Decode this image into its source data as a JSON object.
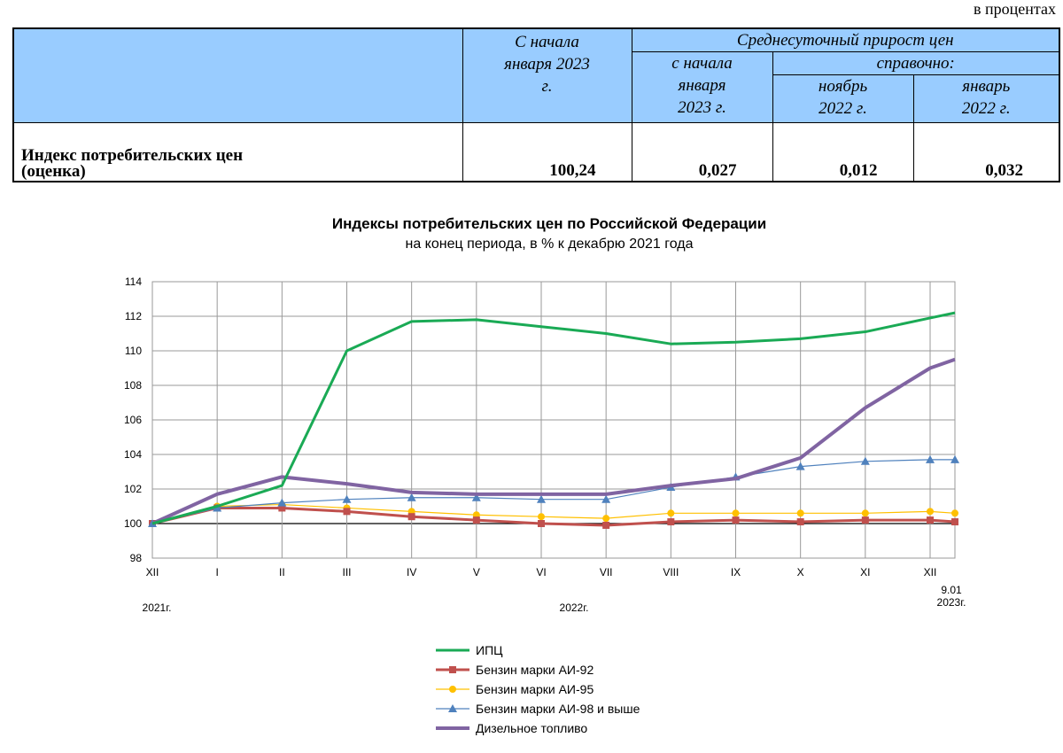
{
  "units_label": "в процентах",
  "table": {
    "col_since_jan": "С начала января 2023 г.",
    "col_daily_group": "Среднесуточный прирост цен",
    "col_daily_since_jan": "с начала января 2023 г.",
    "col_reference_group": "справочно:",
    "col_ref_nov": "ноябрь 2022 г.",
    "col_ref_jan": "январь 2022 г.",
    "row_label": "Индекс потребительских цен (оценка)",
    "row_values": [
      "100,24",
      "0,027",
      "0,012",
      "0,032"
    ]
  },
  "chart_data": {
    "type": "line",
    "title": "Индексы потребительских цен по Российской Федерации",
    "subtitle": "на конец периода, в % к декабрю 2021 года",
    "xlabel": "",
    "ylabel": "",
    "ylim": [
      98,
      114
    ],
    "y_ticks": [
      98,
      100,
      102,
      104,
      106,
      108,
      110,
      112,
      114
    ],
    "grid": true,
    "legend_position": "bottom",
    "categories": [
      "XII",
      "I",
      "II",
      "III",
      "IV",
      "V",
      "VI",
      "VII",
      "VIII",
      "IX",
      "X",
      "XI",
      "XII",
      "9.01"
    ],
    "year_labels": [
      "2021г.",
      "2022г.",
      "2023г."
    ],
    "series": [
      {
        "name": "ИПЦ",
        "color": "#1aaa55",
        "marker": "none",
        "width": 3,
        "values": [
          100,
          101.0,
          102.2,
          110.0,
          111.7,
          111.8,
          111.4,
          111.0,
          110.4,
          110.5,
          110.7,
          111.1,
          111.9,
          112.2
        ]
      },
      {
        "name": "Бензин марки АИ-92",
        "color": "#c0504d",
        "marker": "square",
        "width": 3,
        "values": [
          100,
          100.9,
          100.9,
          100.7,
          100.4,
          100.2,
          100.0,
          99.9,
          100.1,
          100.2,
          100.1,
          100.2,
          100.2,
          100.1
        ]
      },
      {
        "name": "Бензин марки АИ-95",
        "color": "#ffc000",
        "marker": "circle",
        "width": 1.2,
        "values": [
          100,
          101.0,
          101.1,
          100.9,
          100.7,
          100.5,
          100.4,
          100.3,
          100.6,
          100.6,
          100.6,
          100.6,
          100.7,
          100.6
        ]
      },
      {
        "name": "Бензин марки АИ-98 и выше",
        "color": "#4f81bd",
        "marker": "triangle",
        "width": 1.2,
        "values": [
          100,
          100.9,
          101.2,
          101.4,
          101.5,
          101.5,
          101.4,
          101.4,
          102.1,
          102.7,
          103.3,
          103.6,
          103.7,
          103.7
        ]
      },
      {
        "name": "Дизельное топливо",
        "color": "#8064a2",
        "marker": "none",
        "width": 4,
        "values": [
          100,
          101.7,
          102.7,
          102.3,
          101.8,
          101.7,
          101.7,
          101.7,
          102.2,
          102.6,
          103.8,
          106.7,
          109.0,
          109.5
        ]
      }
    ]
  }
}
